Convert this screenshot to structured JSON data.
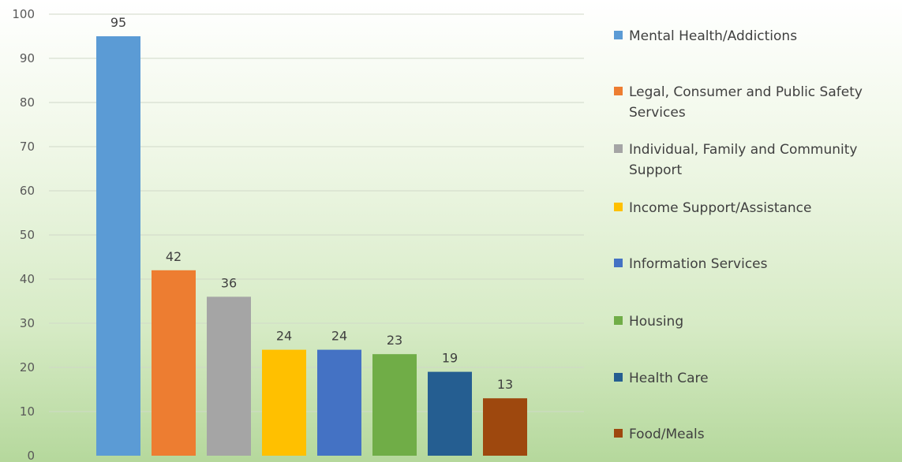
{
  "chart_data": {
    "type": "bar",
    "title": "",
    "xlabel": "",
    "ylabel": "",
    "ylim": [
      0,
      100
    ],
    "ytick_step": 10,
    "grid": true,
    "legend_position": "right",
    "categories": [
      "Mental Health/Addictions",
      "Legal, Consumer and Public Safety Services",
      "Individual, Family and Community Support",
      "Income Support/Assistance",
      "Information Services",
      "Housing",
      "Health Care",
      "Food/Meals"
    ],
    "values": [
      95,
      42,
      36,
      24,
      24,
      23,
      19,
      13
    ],
    "colors": [
      "#5b9bd5",
      "#ed7d31",
      "#a5a5a5",
      "#ffc000",
      "#4472c4",
      "#70ad47",
      "#255e91",
      "#9e480e"
    ],
    "yticks": [
      "0",
      "10",
      "20",
      "30",
      "40",
      "50",
      "60",
      "70",
      "80",
      "90",
      "100"
    ],
    "data_labels": [
      "95",
      "42",
      "36",
      "24",
      "24",
      "23",
      "19",
      "13"
    ]
  }
}
